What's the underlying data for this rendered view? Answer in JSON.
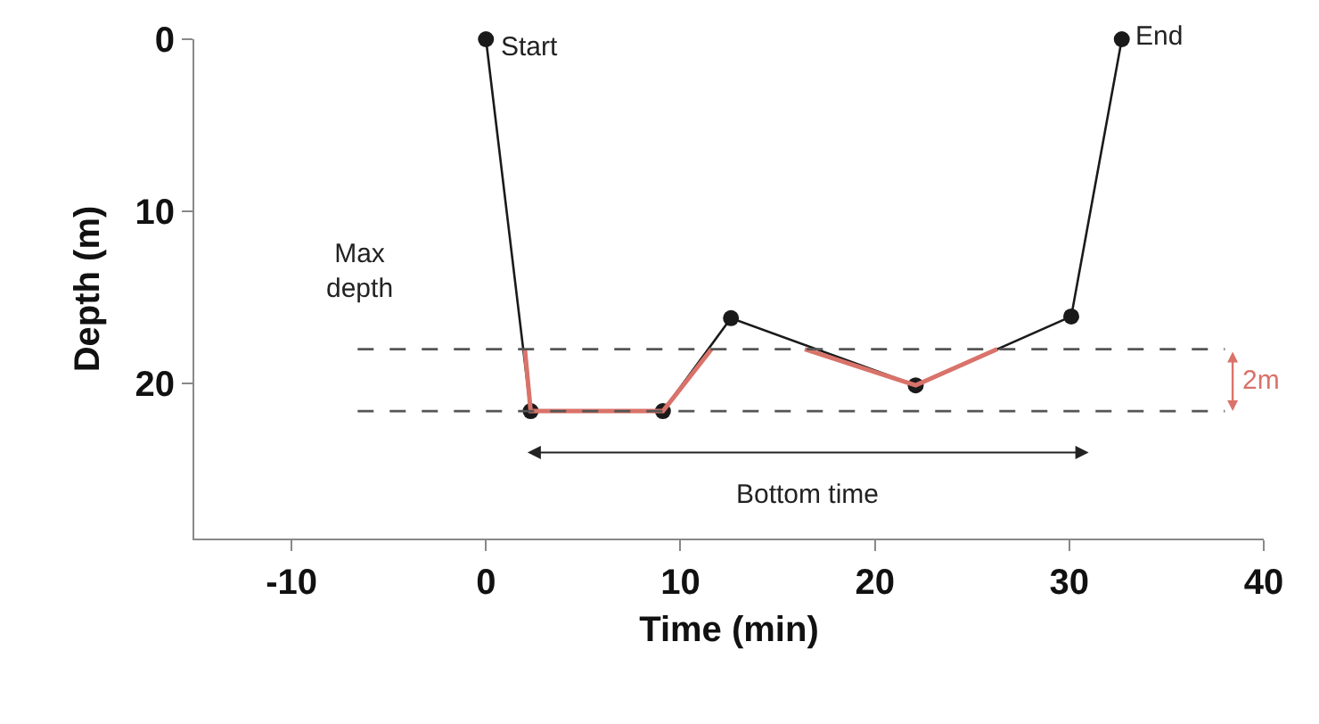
{
  "chart_data": {
    "type": "line",
    "xlabel": "Time (min)",
    "ylabel": "Depth (m)",
    "xlim": [
      -15,
      40
    ],
    "xticks": [
      -10,
      0,
      10,
      20,
      30,
      40
    ],
    "ylim": [
      29,
      0
    ],
    "yticks": [
      0,
      10,
      20
    ],
    "series": [
      {
        "color": "#1a1a1a",
        "marker": "circle",
        "line_style": "solid",
        "x": [
          0,
          2.3,
          9.1,
          12.6,
          22.1,
          30.1,
          32.7
        ],
        "values": [
          0,
          21.6,
          21.6,
          16.2,
          20.1,
          16.1,
          0
        ]
      },
      {
        "color": "#d9736a",
        "marker": "none",
        "line_style": "solid",
        "x": [
          2.0,
          2.3,
          9.1,
          11.6,
          14.0,
          16.4,
          22.1,
          26.3
        ],
        "values": [
          18.0,
          21.6,
          21.6,
          18.0,
          null,
          18.0,
          20.1,
          18.0
        ]
      },
      {
        "color": "#555555",
        "marker": "none",
        "line_style": "dashed",
        "x": [
          -6.6,
          38.0
        ],
        "values": [
          18.0,
          18.0
        ]
      },
      {
        "color": "#555555",
        "marker": "none",
        "line_style": "dashed",
        "x": [
          -6.6,
          38.0
        ],
        "values": [
          21.6,
          21.6
        ]
      }
    ],
    "annotations": [
      {
        "text": "Start",
        "x": 0,
        "y": 0
      },
      {
        "text": "End",
        "x": 32.7,
        "y": 0
      },
      "Max\ndepth",
      "Bottom time",
      "2m"
    ]
  }
}
